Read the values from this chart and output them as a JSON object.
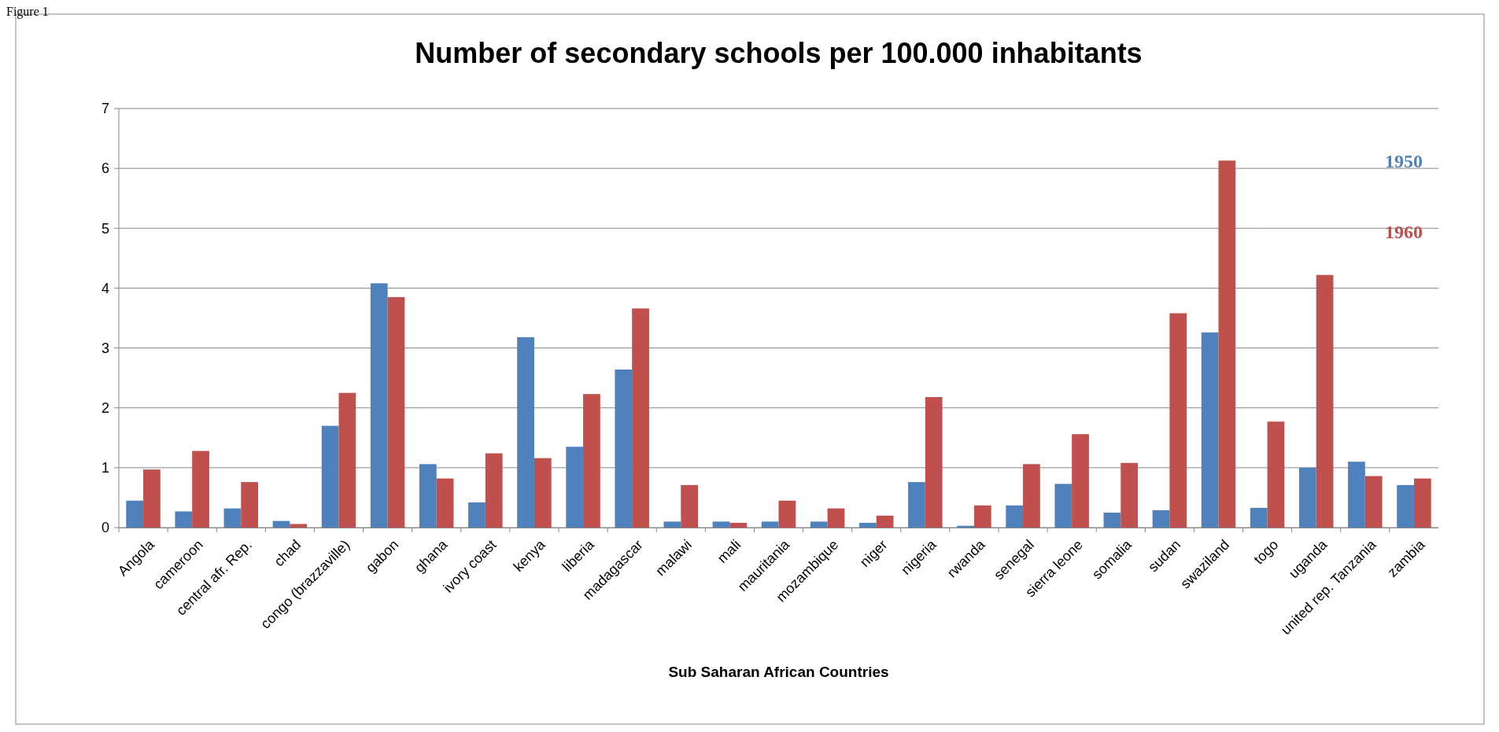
{
  "chart_data": {
    "type": "bar",
    "title": "Number of secondary schools per 100.000 inhabitants",
    "xlabel": "Sub Saharan African Countries",
    "annotations": [
      "Figure 1"
    ],
    "categories": [
      "Angola",
      "cameroon",
      "central afr. Rep.",
      "chad",
      "congo (brazzaville)",
      "gabon",
      "ghana",
      "ivory coast",
      "kenya",
      "liberia",
      "madagascar",
      "malawi",
      "mali",
      "mauritania",
      "mozambique",
      "niger",
      "nigeria",
      "rwanda",
      "senegal",
      "sierra leone",
      "somalia",
      "sudan",
      "swaziland",
      "togo",
      "uganda",
      "united rep. Tanzania",
      "zambia"
    ],
    "series": [
      {
        "name": "1950",
        "color": "#4f81bd",
        "values": [
          0.45,
          0.27,
          0.32,
          0.11,
          1.7,
          4.08,
          1.06,
          0.42,
          3.18,
          1.35,
          2.64,
          0.1,
          0.1,
          0.1,
          0.1,
          0.08,
          0.76,
          0.03,
          0.37,
          0.73,
          0.25,
          0.29,
          3.26,
          0.33,
          1.0,
          1.1,
          0.71
        ]
      },
      {
        "name": "1960",
        "color": "#c0504d",
        "values": [
          0.97,
          1.28,
          0.76,
          0.06,
          2.25,
          3.85,
          0.82,
          1.24,
          1.16,
          2.23,
          3.66,
          0.71,
          0.08,
          0.45,
          0.32,
          0.2,
          2.18,
          0.37,
          1.06,
          1.56,
          1.08,
          3.58,
          6.13,
          1.77,
          4.22,
          0.86,
          0.82
        ]
      }
    ],
    "ylim": [
      0,
      7
    ],
    "yticks": [
      0,
      1,
      2,
      3,
      4,
      5,
      6,
      7
    ],
    "grid": "y",
    "legend": "top right"
  }
}
